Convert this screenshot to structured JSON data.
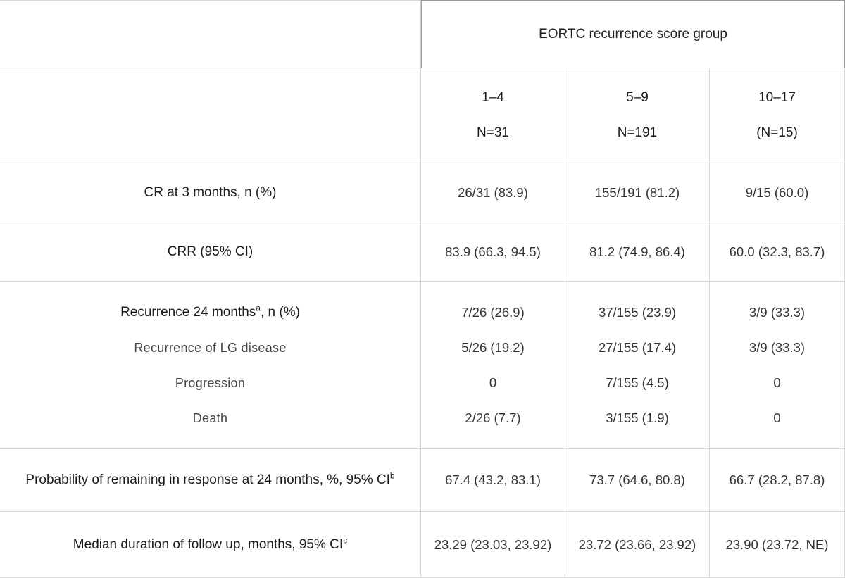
{
  "table": {
    "group_header": "EORTC recurrence score group",
    "columns": [
      {
        "range": "1–4",
        "n": "N=31"
      },
      {
        "range": "5–9",
        "n": "N=191"
      },
      {
        "range": "10–17",
        "n": "(N=15)"
      }
    ],
    "rows": [
      {
        "label": "CR at 3 months, n (%)",
        "values": [
          "26/31 (83.9)",
          "155/191 (81.2)",
          "9/15 (60.0)"
        ]
      },
      {
        "label": "CRR (95% CI)",
        "values": [
          "83.9 (66.3, 94.5)",
          "81.2 (74.9, 86.4)",
          "60.0 (32.3, 83.7)"
        ]
      },
      {
        "label": "Recurrence 24 months",
        "label_sup": "a",
        "label_suffix": ", n (%)",
        "values": [
          "7/26 (26.9)",
          "37/155 (23.9)",
          "3/9 (33.3)"
        ],
        "subrows": [
          {
            "label": "Recurrence of LG disease",
            "values": [
              "5/26 (19.2)",
              "27/155 (17.4)",
              "3/9 (33.3)"
            ]
          },
          {
            "label": "Progression",
            "values": [
              "0",
              "7/155 (4.5)",
              "0"
            ]
          },
          {
            "label": "Death",
            "values": [
              "2/26 (7.7)",
              "3/155 (1.9)",
              "0"
            ]
          }
        ]
      },
      {
        "label": "Probability of remaining in response at 24 months, %, 95% CI",
        "label_sup": "b",
        "values": [
          "67.4 (43.2, 83.1)",
          "73.7 (64.6, 80.8)",
          "66.7 (28.2, 87.8)"
        ]
      },
      {
        "label": "Median duration of follow up, months, 95% CI",
        "label_sup": "c",
        "values": [
          "23.29 (23.03, 23.92)",
          "23.72 (23.66, 23.92)",
          "23.90 (23.72, NE)"
        ]
      }
    ]
  }
}
